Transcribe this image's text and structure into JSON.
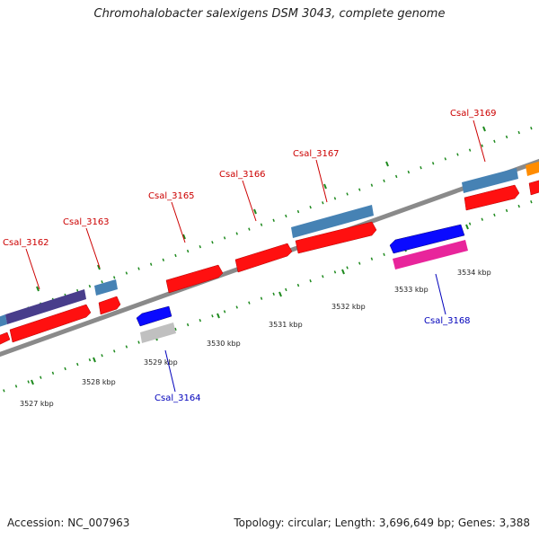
{
  "title": "Chromohalobacter salexigens DSM 3043, complete genome",
  "footer": {
    "accession": "Accession: NC_007963",
    "summary": "Topology: circular; Length: 3,696,649 bp; Genes: 3,388"
  },
  "colors": {
    "backbone": "#8a8a8a",
    "tick": "#1e8a1e",
    "label_forward": "#cc0000",
    "label_reverse": "#0000bb"
  },
  "scale_labels": [
    "3527 kbp",
    "3528 kbp",
    "3529 kbp",
    "3530 kbp",
    "3531 kbp",
    "3532 kbp",
    "3533 kbp",
    "3534 kbp"
  ],
  "gene_labels": [
    {
      "name": "Csal_3162",
      "strand": "forward"
    },
    {
      "name": "Csal_3163",
      "strand": "forward"
    },
    {
      "name": "Csal_3165",
      "strand": "forward"
    },
    {
      "name": "Csal_3166",
      "strand": "forward"
    },
    {
      "name": "Csal_3167",
      "strand": "forward"
    },
    {
      "name": "Csal_3169",
      "strand": "forward"
    },
    {
      "name": "Csal_3164",
      "strand": "reverse"
    },
    {
      "name": "Csal_3168",
      "strand": "reverse"
    }
  ],
  "features": [
    {
      "name": "cds-forward",
      "color": "#ff1010"
    },
    {
      "name": "gene-forward",
      "color": "#4682b4"
    },
    {
      "name": "gene-forward-dark",
      "color": "#483d8b"
    },
    {
      "name": "cds-reverse",
      "color": "#0a0aff"
    },
    {
      "name": "gene-reverse",
      "color": "#c0c0c0"
    },
    {
      "name": "rna-reverse",
      "color": "#e8259b"
    },
    {
      "name": "other",
      "color": "#ff8c00"
    }
  ]
}
